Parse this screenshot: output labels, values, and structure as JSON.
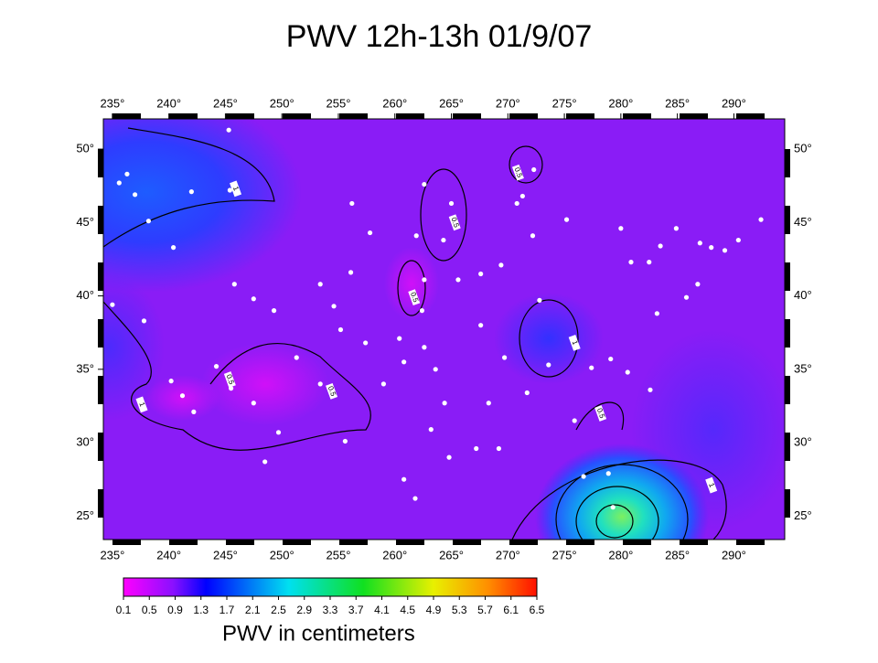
{
  "title": "PWV 12h-13h 01/9/07",
  "map": {
    "type": "map",
    "lonlim": [
      234.2,
      294.5
    ],
    "latlim": [
      23.4,
      52.06
    ],
    "lonticks": [
      {
        "value": 235,
        "label": "235°"
      },
      {
        "value": 240,
        "label": "240°"
      },
      {
        "value": 245,
        "label": "245°"
      },
      {
        "value": 250,
        "label": "250°"
      },
      {
        "value": 255,
        "label": "255°"
      },
      {
        "value": 260,
        "label": "260°"
      },
      {
        "value": 265,
        "label": "265°"
      },
      {
        "value": 270,
        "label": "270°"
      },
      {
        "value": 275,
        "label": "275°"
      },
      {
        "value": 280,
        "label": "280°"
      },
      {
        "value": 285,
        "label": "285°"
      },
      {
        "value": 290,
        "label": "290°"
      }
    ],
    "latticks": [
      {
        "value": 25,
        "label": "25°"
      },
      {
        "value": 30,
        "label": "30°"
      },
      {
        "value": 35,
        "label": "35°"
      },
      {
        "value": 40,
        "label": "40°"
      },
      {
        "value": 45,
        "label": "45°"
      },
      {
        "value": 50,
        "label": "50°"
      }
    ],
    "stations": [
      [
        245.3,
        51.3
      ],
      [
        235.6,
        47.7
      ],
      [
        236.3,
        48.3
      ],
      [
        237.0,
        46.9
      ],
      [
        238.2,
        45.1
      ],
      [
        242.0,
        47.1
      ],
      [
        245.4,
        47.2
      ],
      [
        240.4,
        43.3
      ],
      [
        235.0,
        39.4
      ],
      [
        237.8,
        38.3
      ],
      [
        240.2,
        34.2
      ],
      [
        241.2,
        33.2
      ],
      [
        242.2,
        32.1
      ],
      [
        244.2,
        35.2
      ],
      [
        245.8,
        40.8
      ],
      [
        247.5,
        39.8
      ],
      [
        249.3,
        39.0
      ],
      [
        245.5,
        33.7
      ],
      [
        247.5,
        32.7
      ],
      [
        249.7,
        30.7
      ],
      [
        248.5,
        28.7
      ],
      [
        251.3,
        35.8
      ],
      [
        253.4,
        40.8
      ],
      [
        254.6,
        39.3
      ],
      [
        255.2,
        37.7
      ],
      [
        253.4,
        34.0
      ],
      [
        255.6,
        30.1
      ],
      [
        256.2,
        46.3
      ],
      [
        256.1,
        41.6
      ],
      [
        257.8,
        44.3
      ],
      [
        257.4,
        36.8
      ],
      [
        259.0,
        34.0
      ],
      [
        260.4,
        37.1
      ],
      [
        261.9,
        44.1
      ],
      [
        262.6,
        47.6
      ],
      [
        264.3,
        43.8
      ],
      [
        265.0,
        46.3
      ],
      [
        262.6,
        41.1
      ],
      [
        262.4,
        39.0
      ],
      [
        260.8,
        35.5
      ],
      [
        262.6,
        36.5
      ],
      [
        263.6,
        35.0
      ],
      [
        264.4,
        32.7
      ],
      [
        263.2,
        30.9
      ],
      [
        260.8,
        27.5
      ],
      [
        261.8,
        26.2
      ],
      [
        264.8,
        29.0
      ],
      [
        267.2,
        29.6
      ],
      [
        269.2,
        29.6
      ],
      [
        265.6,
        41.1
      ],
      [
        267.6,
        41.5
      ],
      [
        267.6,
        38.0
      ],
      [
        269.4,
        42.1
      ],
      [
        270.8,
        46.3
      ],
      [
        271.3,
        46.8
      ],
      [
        272.3,
        48.6
      ],
      [
        272.2,
        44.1
      ],
      [
        275.2,
        45.2
      ],
      [
        272.8,
        39.7
      ],
      [
        269.7,
        35.8
      ],
      [
        271.7,
        33.4
      ],
      [
        273.6,
        35.3
      ],
      [
        275.9,
        31.5
      ],
      [
        277.4,
        35.1
      ],
      [
        279.1,
        35.7
      ],
      [
        280.6,
        34.8
      ],
      [
        282.6,
        33.6
      ],
      [
        280.0,
        44.6
      ],
      [
        280.9,
        42.3
      ],
      [
        282.5,
        42.3
      ],
      [
        283.5,
        43.4
      ],
      [
        284.9,
        44.6
      ],
      [
        285.8,
        39.9
      ],
      [
        283.2,
        38.8
      ],
      [
        287.0,
        43.6
      ],
      [
        288.0,
        43.3
      ],
      [
        289.2,
        43.1
      ],
      [
        290.4,
        43.8
      ],
      [
        292.4,
        45.2
      ],
      [
        286.8,
        40.8
      ],
      [
        276.7,
        27.7
      ],
      [
        278.9,
        27.9
      ],
      [
        279.3,
        25.6
      ],
      [
        268.3,
        32.7
      ]
    ],
    "contour_labels": [
      {
        "level": 1,
        "lon": 245.9,
        "lat": 47.3
      },
      {
        "level": 1,
        "lon": 237.6,
        "lat": 32.6
      },
      {
        "level": 0.5,
        "lon": 245.4,
        "lat": 34.3
      },
      {
        "level": 0.5,
        "lon": 254.4,
        "lat": 33.5
      },
      {
        "level": 0.5,
        "lon": 261.7,
        "lat": 39.9
      },
      {
        "level": 0.5,
        "lon": 265.3,
        "lat": 45.0
      },
      {
        "level": 0.5,
        "lon": 270.9,
        "lat": 48.4
      },
      {
        "level": 1,
        "lon": 275.9,
        "lat": 36.8
      },
      {
        "level": 0.5,
        "lon": 278.2,
        "lat": 32.0
      },
      {
        "level": 1,
        "lon": 288.0,
        "lat": 27.1
      }
    ]
  },
  "colorbar": {
    "range": [
      0.1,
      6.5
    ],
    "ticks": [
      0.1,
      0.5,
      0.9,
      1.3,
      1.7,
      2.1,
      2.5,
      2.9,
      3.3,
      3.7,
      4.1,
      4.5,
      4.9,
      5.3,
      5.7,
      6.1,
      6.5
    ],
    "label": "PWV in centimeters"
  }
}
